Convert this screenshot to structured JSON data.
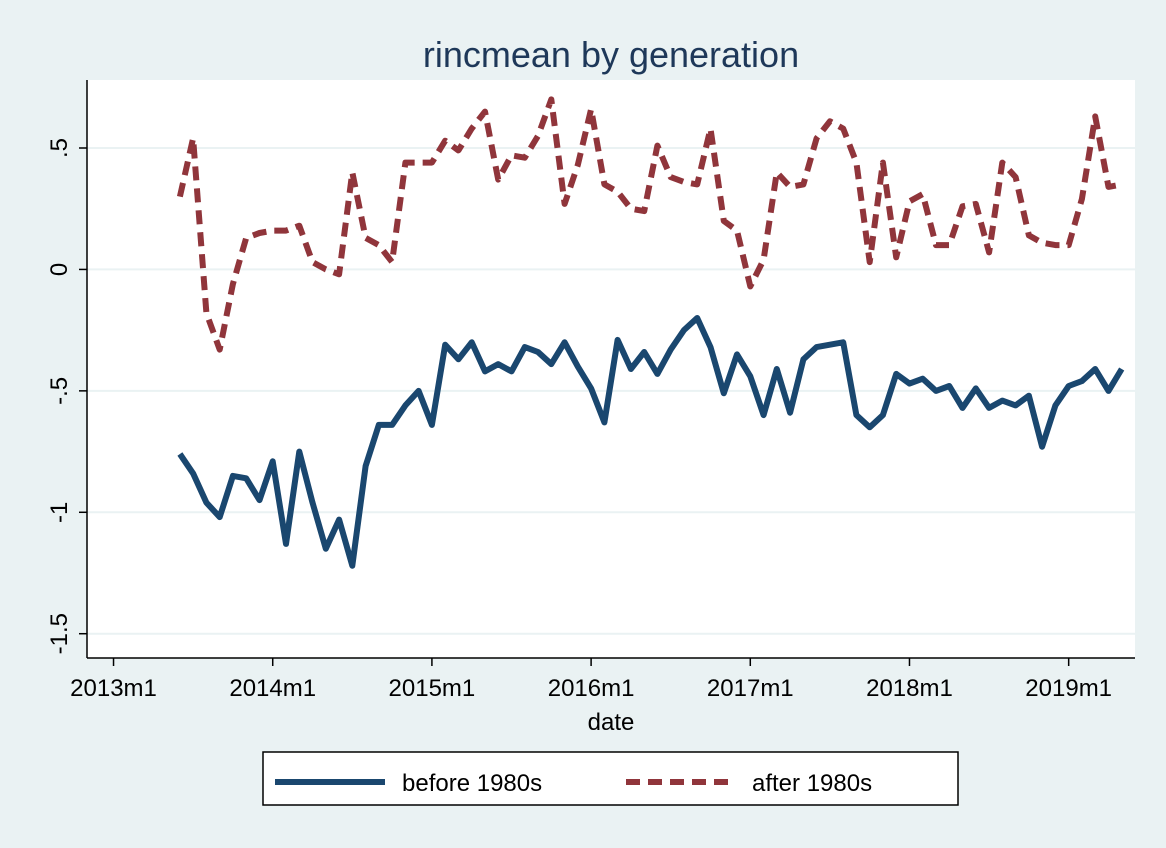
{
  "chart_data": {
    "type": "line",
    "title": "rincmean by generation",
    "xlabel": "date",
    "ylabel": "",
    "x_ticks": [
      "2013m1",
      "2014m1",
      "2015m1",
      "2016m1",
      "2017m1",
      "2018m1",
      "2019m1"
    ],
    "y_ticks": [
      "-1.5",
      "-1",
      "-.5",
      "0",
      ".5"
    ],
    "ylim": [
      -1.6,
      0.78
    ],
    "xlim": [
      "2012m11",
      "2019m6"
    ],
    "grid": true,
    "legend_position": "bottom",
    "x": [
      "2013m6",
      "2013m7",
      "2013m8",
      "2013m9",
      "2013m10",
      "2013m11",
      "2013m12",
      "2014m1",
      "2014m2",
      "2014m3",
      "2014m4",
      "2014m5",
      "2014m6",
      "2014m7",
      "2014m8",
      "2014m9",
      "2014m10",
      "2014m11",
      "2014m12",
      "2015m1",
      "2015m2",
      "2015m3",
      "2015m4",
      "2015m5",
      "2015m6",
      "2015m7",
      "2015m8",
      "2015m9",
      "2015m10",
      "2015m11",
      "2015m12",
      "2016m1",
      "2016m2",
      "2016m3",
      "2016m4",
      "2016m5",
      "2016m6",
      "2016m7",
      "2016m8",
      "2016m9",
      "2016m10",
      "2016m11",
      "2016m12",
      "2017m1",
      "2017m2",
      "2017m3",
      "2017m4",
      "2017m5",
      "2017m6",
      "2017m7",
      "2017m8",
      "2017m9",
      "2017m10",
      "2017m11",
      "2017m12",
      "2018m1",
      "2018m2",
      "2018m3",
      "2018m4",
      "2018m5",
      "2018m6",
      "2018m7",
      "2018m8",
      "2018m9",
      "2018m10",
      "2018m11",
      "2018m12",
      "2019m1",
      "2019m2",
      "2019m3",
      "2019m4",
      "2019m5"
    ],
    "series": [
      {
        "name": "before 1980s",
        "color": "#1a476f",
        "style": "solid",
        "values": [
          -0.76,
          -0.84,
          -0.96,
          -1.02,
          -0.85,
          -0.86,
          -0.95,
          -0.79,
          -1.13,
          -0.75,
          -0.96,
          -1.15,
          -1.03,
          -1.22,
          -0.81,
          -0.64,
          -0.64,
          -0.56,
          -0.5,
          -0.64,
          -0.31,
          -0.37,
          -0.3,
          -0.42,
          -0.39,
          -0.42,
          -0.32,
          -0.34,
          -0.39,
          -0.3,
          -0.4,
          -0.49,
          -0.63,
          -0.29,
          -0.41,
          -0.34,
          -0.43,
          -0.33,
          -0.25,
          -0.2,
          -0.32,
          -0.51,
          -0.35,
          -0.44,
          -0.6,
          -0.41,
          -0.59,
          -0.37,
          -0.32,
          -0.31,
          -0.3,
          -0.6,
          -0.65,
          -0.6,
          -0.43,
          -0.47,
          -0.45,
          -0.5,
          -0.48,
          -0.57,
          -0.49,
          -0.57,
          -0.54,
          -0.56,
          -0.52,
          -0.73,
          -0.56,
          -0.48,
          -0.46,
          -0.41,
          -0.5,
          -0.41
        ]
      },
      {
        "name": "after 1980s",
        "color": "#90353b",
        "style": "dashed",
        "values": [
          0.3,
          0.54,
          -0.18,
          -0.33,
          -0.06,
          0.13,
          0.15,
          0.16,
          0.16,
          0.18,
          0.03,
          0.0,
          -0.02,
          0.4,
          0.13,
          0.1,
          0.03,
          0.44,
          0.44,
          0.44,
          0.53,
          0.49,
          0.58,
          0.65,
          0.37,
          0.47,
          0.46,
          0.55,
          0.7,
          0.27,
          0.43,
          0.66,
          0.35,
          0.32,
          0.25,
          0.24,
          0.51,
          0.38,
          0.36,
          0.35,
          0.58,
          0.2,
          0.16,
          -0.07,
          0.04,
          0.4,
          0.34,
          0.35,
          0.54,
          0.61,
          0.58,
          0.44,
          0.03,
          0.44,
          0.05,
          0.28,
          0.31,
          0.1,
          0.1,
          0.26,
          0.27,
          0.07,
          0.44,
          0.38,
          0.14,
          0.11,
          0.1,
          0.1,
          0.29,
          0.63,
          0.34,
          0.35
        ]
      }
    ]
  }
}
